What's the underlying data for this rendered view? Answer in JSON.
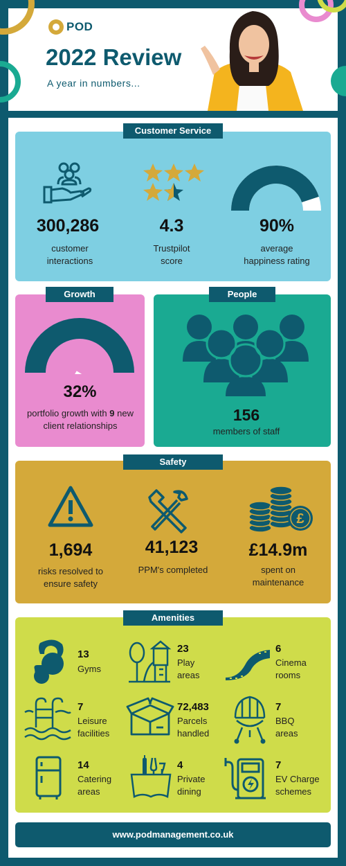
{
  "header": {
    "logo": "POD",
    "title": "2022 Review",
    "subtitle": "A year in numbers..."
  },
  "customer_service": {
    "tab": "Customer Service",
    "stats": [
      {
        "value": "300,286",
        "caption": "customer interactions",
        "icon": "hand-people-icon"
      },
      {
        "value": "4.3",
        "caption": "Trustpilot score",
        "icon": "stars-icon"
      },
      {
        "value": "90%",
        "caption": "average happiness rating",
        "icon": "gauge-icon"
      }
    ],
    "trustpilot_score": 4.3,
    "happiness_percent": 90
  },
  "growth": {
    "tab": "Growth",
    "value": "32%",
    "caption_pre": "portfolio growth with ",
    "caption_bold": "9",
    "caption_post": " new client relationships",
    "percent": 32
  },
  "people": {
    "tab": "People",
    "value": "156",
    "caption": "members of staff"
  },
  "safety": {
    "tab": "Safety",
    "stats": [
      {
        "value": "1,694",
        "caption": "risks resolved to ensure safety",
        "icon": "warning-icon"
      },
      {
        "value": "41,123",
        "caption": "PPM's completed",
        "icon": "tools-icon"
      },
      {
        "value": "£14.9m",
        "caption": "spent on maintenance",
        "icon": "coins-icon"
      }
    ]
  },
  "amenities": {
    "tab": "Amenities",
    "items": [
      {
        "num": "13",
        "label": "Gyms",
        "icon": "kettlebell-icon"
      },
      {
        "num": "23",
        "label": "Play areas",
        "icon": "playground-icon"
      },
      {
        "num": "6",
        "label": "Cinema rooms",
        "icon": "film-icon"
      },
      {
        "num": "7",
        "label": "Leisure facilities",
        "icon": "pool-icon"
      },
      {
        "num": "72,483",
        "label": "Parcels handled",
        "icon": "parcel-icon"
      },
      {
        "num": "7",
        "label": "BBQ areas",
        "icon": "bbq-icon"
      },
      {
        "num": "14",
        "label": "Catering areas",
        "icon": "fridge-icon"
      },
      {
        "num": "4",
        "label": "Private dining",
        "icon": "dining-icon"
      },
      {
        "num": "7",
        "label": "EV Charge schemes",
        "icon": "ev-charger-icon"
      }
    ]
  },
  "footer": {
    "url": "www.podmanagement.co.uk"
  },
  "colors": {
    "teal_dark": "#0e5a6e",
    "light_blue": "#7ecfe2",
    "pink": "#e98bcf",
    "teal": "#1aaa92",
    "gold": "#d4a93a",
    "lime": "#cfdc4a",
    "yellow": "#f4b41e"
  }
}
